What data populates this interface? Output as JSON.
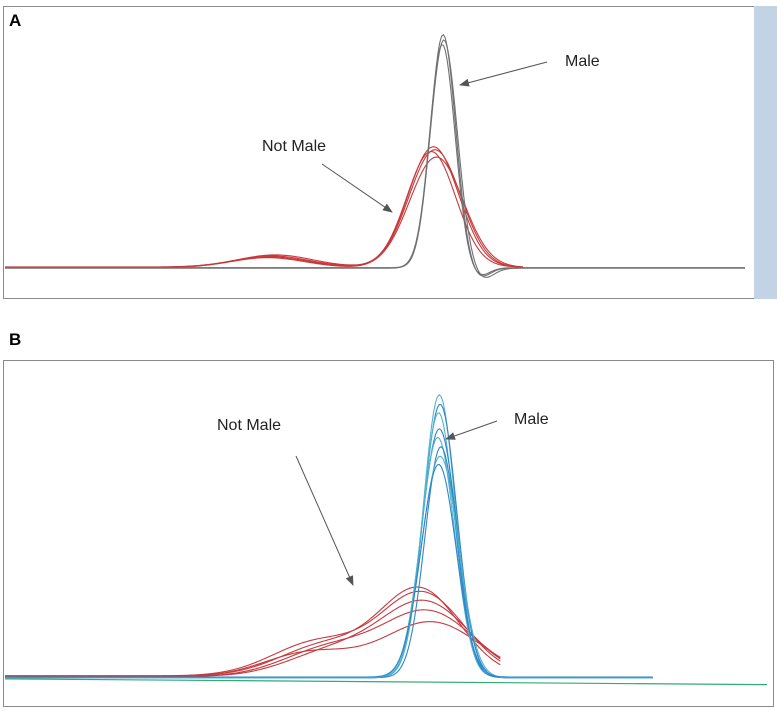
{
  "chart_data": [
    {
      "type": "line",
      "panel_label": "A",
      "title": "",
      "xlabel": "",
      "ylabel": "",
      "grid": false,
      "legend": "none",
      "xlim": [
        0,
        100
      ],
      "ylim": [
        -2,
        100
      ],
      "colors": {
        "not_male": "#c8383a",
        "male": "#707070",
        "frame_side": "#c3d3e6",
        "annotation": "#555555"
      },
      "series": [
        {
          "group": "not_male",
          "peak_center": 57.9,
          "peak_width": 3.4,
          "peak_height": 48,
          "hump_center": 36,
          "hump_height": 4.5,
          "baseline": 1.5
        },
        {
          "group": "not_male",
          "peak_center": 58.1,
          "peak_width": 3.5,
          "peak_height": 47,
          "hump_center": 35.5,
          "hump_height": 4.0,
          "baseline": 1.3
        },
        {
          "group": "not_male",
          "peak_center": 57.6,
          "peak_width": 3.3,
          "peak_height": 46,
          "hump_center": 36.5,
          "hump_height": 4.8,
          "baseline": 1.6
        },
        {
          "group": "not_male",
          "peak_center": 58.3,
          "peak_width": 3.6,
          "peak_height": 44,
          "hump_center": 35.8,
          "hump_height": 4.2,
          "baseline": 1.4
        },
        {
          "group": "male",
          "peak_center": 59.2,
          "peak_width": 1.7,
          "peak_height": 93,
          "baseline": 1.2,
          "dip": -4
        },
        {
          "group": "male",
          "peak_center": 59.3,
          "peak_width": 1.8,
          "peak_height": 91,
          "baseline": 1.1,
          "dip": -4.5
        },
        {
          "group": "male",
          "peak_center": 59.1,
          "peak_width": 1.7,
          "peak_height": 89,
          "baseline": 1.3,
          "dip": -3.5
        }
      ],
      "annotations": [
        {
          "text": "Male",
          "points_to": "male"
        },
        {
          "text": "Not Male",
          "points_to": "not_male"
        }
      ]
    },
    {
      "type": "line",
      "panel_label": "B",
      "title": "",
      "xlabel": "",
      "ylabel": "",
      "grid": false,
      "legend": "none",
      "xlim": [
        0,
        100
      ],
      "ylim": [
        -2,
        100
      ],
      "colors": {
        "not_male": "#c43a3e",
        "male": "#2f86c9",
        "male_light": "#52b4cc",
        "baseline_line": "#33aa77",
        "annotation": "#555555"
      },
      "series": [
        {
          "group": "not_male",
          "peak_center": 54.5,
          "peak_width": 5.2,
          "peak_height": 28,
          "shoulder_center": 42,
          "shoulder_height": 10,
          "baseline": 2
        },
        {
          "group": "not_male",
          "peak_center": 54.8,
          "peak_width": 5.5,
          "peak_height": 27,
          "shoulder_center": 41,
          "shoulder_height": 11,
          "baseline": 2
        },
        {
          "group": "not_male",
          "peak_center": 55.2,
          "peak_width": 5.8,
          "peak_height": 24,
          "shoulder_center": 43,
          "shoulder_height": 8,
          "baseline": 1.8
        },
        {
          "group": "not_male",
          "peak_center": 55.6,
          "peak_width": 6.0,
          "peak_height": 21,
          "shoulder_center": 42.5,
          "shoulder_height": 9,
          "baseline": 1.8
        },
        {
          "group": "not_male",
          "peak_center": 56.0,
          "peak_width": 6.3,
          "peak_height": 18,
          "shoulder_center": 40,
          "shoulder_height": 8,
          "baseline": 1.6
        },
        {
          "group": "male",
          "peak_center": 57.0,
          "peak_width": 2.1,
          "peak_height": 93,
          "baseline": 1.5
        },
        {
          "group": "male",
          "peak_center": 57.1,
          "peak_width": 2.2,
          "peak_height": 90,
          "baseline": 1.4
        },
        {
          "group": "male",
          "peak_center": 56.9,
          "peak_width": 2.1,
          "peak_height": 87,
          "baseline": 1.6
        },
        {
          "group": "male",
          "peak_center": 57.0,
          "peak_width": 2.3,
          "peak_height": 82,
          "baseline": 1.3
        },
        {
          "group": "male",
          "peak_center": 56.8,
          "peak_width": 2.2,
          "peak_height": 79,
          "baseline": 1.5
        },
        {
          "group": "male",
          "peak_center": 57.2,
          "peak_width": 2.1,
          "peak_height": 76,
          "baseline": 1.4
        },
        {
          "group": "male",
          "peak_center": 57.1,
          "peak_width": 2.4,
          "peak_height": 73,
          "baseline": 1.3
        },
        {
          "group": "male",
          "peak_center": 56.9,
          "peak_width": 2.3,
          "peak_height": 70,
          "baseline": 1.6
        }
      ],
      "annotations": [
        {
          "text": "Male",
          "points_to": "male"
        },
        {
          "text": "Not Male",
          "points_to": "not_male"
        }
      ]
    }
  ]
}
